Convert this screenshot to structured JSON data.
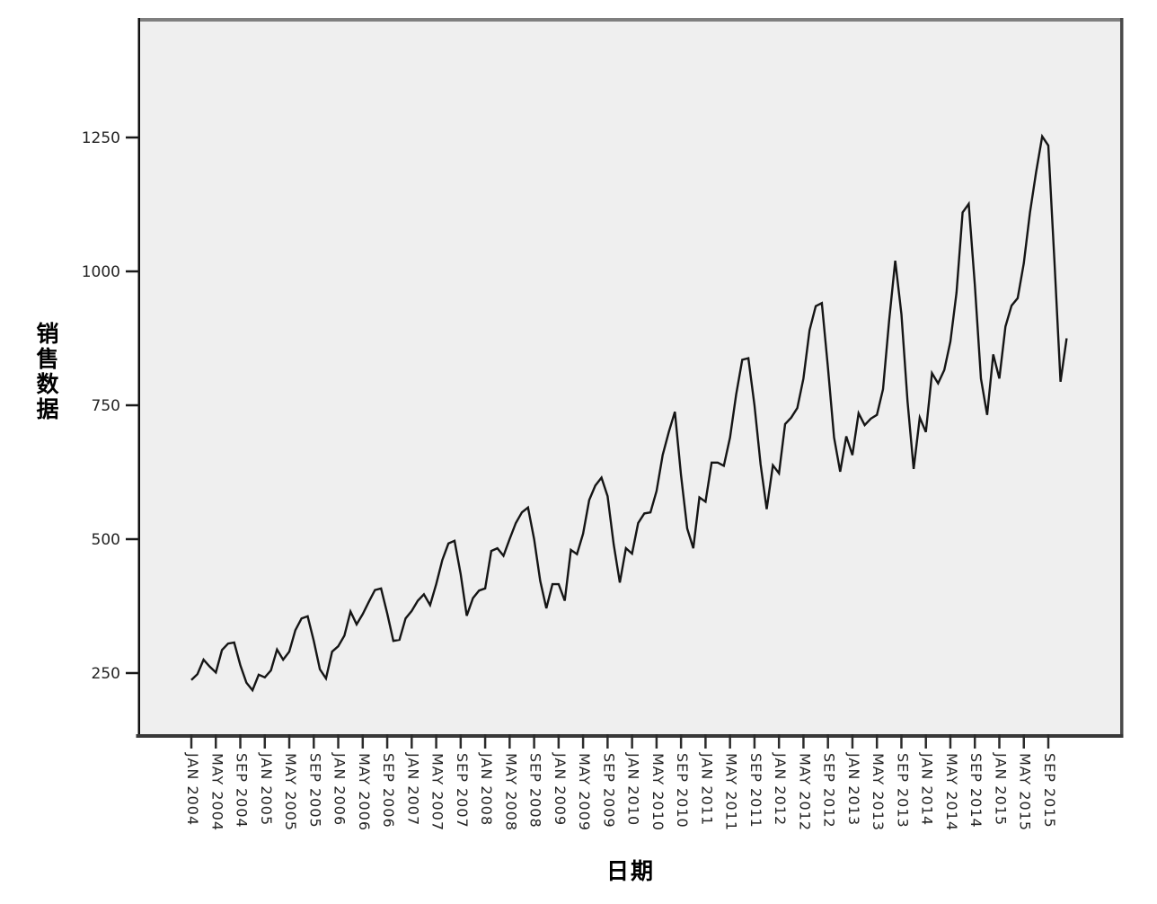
{
  "chart_data": {
    "type": "line",
    "title": "",
    "xlabel": "日期",
    "ylabel": "销售数据",
    "legend": "none",
    "grid": false,
    "line_color": "#151515",
    "plot_background": "#efefef",
    "ylim": [
      136,
      1468
    ],
    "y_ticks": [
      250,
      500,
      750,
      1000,
      1250
    ],
    "x_range": [
      "JAN 2004",
      "DEC 2015"
    ],
    "x_tick_labels": [
      "JAN 2004",
      "MAY 2004",
      "SEP 2004",
      "JAN 2005",
      "MAY 2005",
      "SEP 2005",
      "JAN 2006",
      "MAY 2006",
      "SEP 2006",
      "JAN 2007",
      "MAY 2007",
      "SEP 2007",
      "JAN 2008",
      "MAY 2008",
      "SEP 2008",
      "JAN 2009",
      "MAY 2009",
      "SEP 2009",
      "JAN 2010",
      "MAY 2010",
      "SEP 2010",
      "JAN 2011",
      "MAY 2011",
      "SEP 2011",
      "JAN 2012",
      "MAY 2012",
      "SEP 2012",
      "JAN 2013",
      "MAY 2013",
      "SEP 2013",
      "JAN 2014",
      "MAY 2014",
      "SEP 2014",
      "JAN 2015",
      "MAY 2015",
      "SEP 2015"
    ],
    "series": [
      {
        "name": "销售数据",
        "start": "JAN 2004",
        "interval": "monthly",
        "values": [
          237,
          248,
          275,
          262,
          251,
          293,
          305,
          307,
          265,
          232,
          218,
          247,
          242,
          255,
          294,
          275,
          290,
          330,
          352,
          356,
          310,
          257,
          240,
          290,
          300,
          320,
          365,
          341,
          360,
          383,
          405,
          408,
          361,
          310,
          312,
          352,
          366,
          385,
          397,
          377,
          416,
          461,
          492,
          497,
          435,
          357,
          390,
          404,
          408,
          478,
          483,
          469,
          500,
          530,
          550,
          559,
          500,
          422,
          371,
          416,
          416,
          385,
          480,
          472,
          510,
          573,
          600,
          615,
          580,
          490,
          419,
          483,
          473,
          530,
          548,
          550,
          590,
          657,
          700,
          738,
          620,
          520,
          483,
          578,
          570,
          643,
          643,
          637,
          690,
          770,
          835,
          838,
          750,
          640,
          556,
          638,
          623,
          715,
          727,
          745,
          800,
          890,
          935,
          941,
          820,
          690,
          626,
          692,
          657,
          735,
          713,
          725,
          732,
          780,
          908,
          1020,
          920,
          757,
          631,
          727,
          700,
          810,
          791,
          816,
          869,
          960,
          1110,
          1126,
          975,
          800,
          732,
          845,
          800,
          897,
          936,
          950,
          1015,
          1110,
          1185,
          1252,
          1235,
          1020,
          794,
          875
        ]
      }
    ]
  }
}
